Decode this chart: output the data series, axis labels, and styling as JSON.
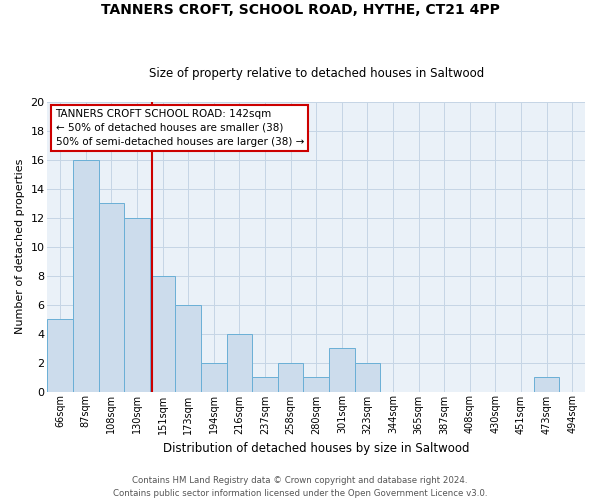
{
  "title": "TANNERS CROFT, SCHOOL ROAD, HYTHE, CT21 4PP",
  "subtitle": "Size of property relative to detached houses in Saltwood",
  "xlabel": "Distribution of detached houses by size in Saltwood",
  "ylabel": "Number of detached properties",
  "categories": [
    "66sqm",
    "87sqm",
    "108sqm",
    "130sqm",
    "151sqm",
    "173sqm",
    "194sqm",
    "216sqm",
    "237sqm",
    "258sqm",
    "280sqm",
    "301sqm",
    "323sqm",
    "344sqm",
    "365sqm",
    "387sqm",
    "408sqm",
    "430sqm",
    "451sqm",
    "473sqm",
    "494sqm"
  ],
  "values": [
    5,
    16,
    13,
    12,
    8,
    6,
    2,
    4,
    1,
    2,
    1,
    3,
    2,
    0,
    0,
    0,
    0,
    0,
    0,
    1,
    0
  ],
  "bar_color": "#ccdcec",
  "bar_edge_color": "#6aafd6",
  "reference_line_x": 3.57,
  "reference_line_color": "#cc0000",
  "annotation_line1": "TANNERS CROFT SCHOOL ROAD: 142sqm",
  "annotation_line2": "← 50% of detached houses are smaller (38)",
  "annotation_line3": "50% of semi-detached houses are larger (38) →",
  "annotation_box_color": "#ffffff",
  "annotation_box_edge_color": "#cc0000",
  "ylim": [
    0,
    20
  ],
  "yticks": [
    0,
    2,
    4,
    6,
    8,
    10,
    12,
    14,
    16,
    18,
    20
  ],
  "footer_line1": "Contains HM Land Registry data © Crown copyright and database right 2024.",
  "footer_line2": "Contains public sector information licensed under the Open Government Licence v3.0.",
  "plot_bg_color": "#eaf1f8",
  "grid_color": "#c5d5e5",
  "fig_width": 6.0,
  "fig_height": 5.0,
  "dpi": 100
}
